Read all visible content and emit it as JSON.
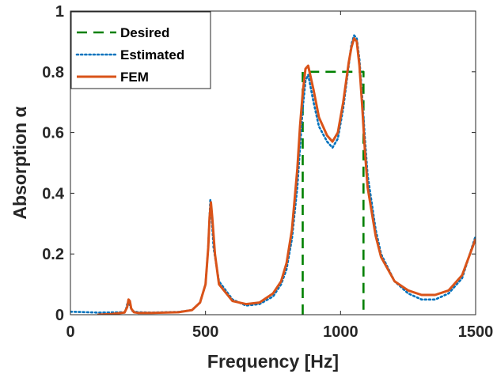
{
  "chart_data": {
    "type": "line",
    "xlabel": "Frequency [Hz]",
    "ylabel": "Absorption α",
    "xlim": [
      0,
      1500
    ],
    "ylim": [
      0,
      1
    ],
    "xticks": [
      "0",
      "500",
      "1000",
      "1500"
    ],
    "yticks": [
      "0",
      "0.2",
      "0.4",
      "0.6",
      "0.8",
      "1"
    ],
    "grid": false,
    "legend_position": "top-left",
    "series": [
      {
        "name": "Desired",
        "style": "dashed",
        "color": "#008000",
        "x": [
          860,
          860,
          1085,
          1085
        ],
        "y": [
          0,
          0.8,
          0.8,
          0
        ]
      },
      {
        "name": "Estimated",
        "style": "dotted",
        "color": "#0072BD",
        "x": [
          0,
          100,
          200,
          205,
          210,
          215,
          220,
          230,
          250,
          300,
          400,
          450,
          480,
          500,
          510,
          515,
          518,
          522,
          530,
          550,
          600,
          650,
          700,
          750,
          780,
          800,
          820,
          840,
          850,
          860,
          870,
          880,
          900,
          920,
          950,
          970,
          990,
          1010,
          1030,
          1040,
          1050,
          1060,
          1070,
          1080,
          1090,
          1100,
          1130,
          1150,
          1200,
          1250,
          1300,
          1350,
          1400,
          1450,
          1500
        ],
        "y": [
          0.01,
          0.007,
          0.008,
          0.015,
          0.035,
          0.04,
          0.03,
          0.012,
          0.008,
          0.007,
          0.009,
          0.015,
          0.04,
          0.1,
          0.22,
          0.32,
          0.38,
          0.33,
          0.22,
          0.11,
          0.05,
          0.03,
          0.035,
          0.06,
          0.1,
          0.15,
          0.25,
          0.42,
          0.55,
          0.68,
          0.77,
          0.79,
          0.7,
          0.62,
          0.57,
          0.55,
          0.58,
          0.68,
          0.82,
          0.89,
          0.92,
          0.91,
          0.84,
          0.72,
          0.58,
          0.46,
          0.28,
          0.2,
          0.11,
          0.07,
          0.05,
          0.05,
          0.07,
          0.12,
          0.26
        ]
      },
      {
        "name": "FEM",
        "style": "solid",
        "color": "#D95319",
        "x": [
          100,
          150,
          200,
          210,
          215,
          220,
          225,
          235,
          250,
          300,
          400,
          450,
          480,
          500,
          510,
          515,
          520,
          525,
          535,
          550,
          600,
          650,
          700,
          750,
          780,
          800,
          820,
          840,
          850,
          860,
          870,
          880,
          900,
          920,
          950,
          970,
          990,
          1010,
          1030,
          1040,
          1050,
          1060,
          1070,
          1080,
          1090,
          1100,
          1130,
          1150,
          1200,
          1250,
          1300,
          1350,
          1400,
          1450,
          1500
        ],
        "y": [
          0,
          0.002,
          0.007,
          0.025,
          0.05,
          0.045,
          0.02,
          0.008,
          0.006,
          0.006,
          0.008,
          0.015,
          0.04,
          0.1,
          0.22,
          0.32,
          0.37,
          0.32,
          0.2,
          0.1,
          0.045,
          0.035,
          0.04,
          0.07,
          0.11,
          0.17,
          0.28,
          0.48,
          0.62,
          0.73,
          0.81,
          0.82,
          0.74,
          0.65,
          0.59,
          0.57,
          0.6,
          0.7,
          0.83,
          0.88,
          0.91,
          0.9,
          0.82,
          0.69,
          0.54,
          0.42,
          0.26,
          0.19,
          0.11,
          0.08,
          0.065,
          0.065,
          0.08,
          0.13,
          0.25
        ]
      }
    ]
  }
}
